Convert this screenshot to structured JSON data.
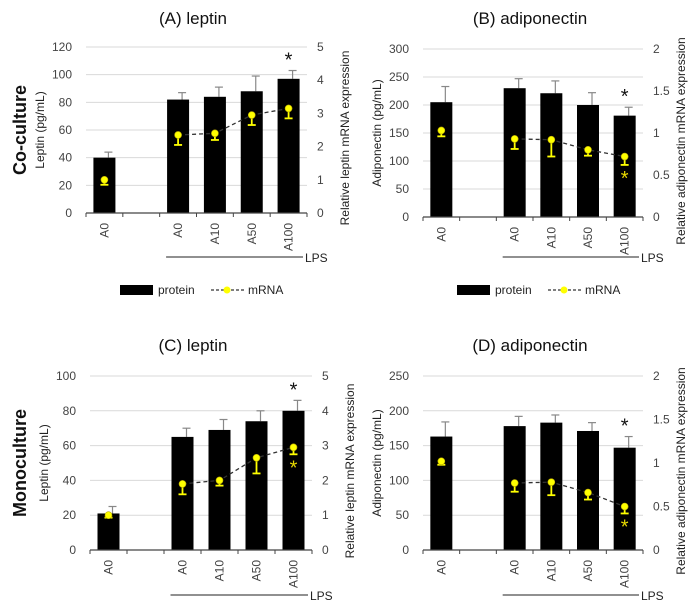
{
  "row_labels": [
    "Co-culture",
    "Monoculture"
  ],
  "legend": {
    "protein": "protein",
    "mrna": "mRNA"
  },
  "colors": {
    "bar": "#000000",
    "mrna": "#ffff00",
    "mrna_stroke": "#b8a800",
    "grid": "#d9d9d9"
  },
  "chart_data": [
    {
      "type": "bar+line",
      "title": "(A) leptin",
      "ylabel": "Leptin (pg/mL)",
      "y2label": "Relative leptin mRNA expression",
      "categories": [
        "A0",
        "",
        "A0",
        "A10",
        "A50",
        "A100"
      ],
      "group_label": "LPS",
      "ylim": [
        0,
        120
      ],
      "yticks": [
        0,
        20,
        40,
        60,
        80,
        100,
        120
      ],
      "y2lim": [
        0,
        5
      ],
      "y2ticks": [
        0,
        1,
        2,
        3,
        4,
        5
      ],
      "series": [
        {
          "name": "protein",
          "values": [
            40,
            null,
            82,
            84,
            88,
            97
          ],
          "errors": [
            4,
            null,
            5,
            7,
            11,
            6
          ],
          "significant": [
            false,
            null,
            false,
            false,
            false,
            true
          ]
        },
        {
          "name": "mRNA",
          "values": [
            1.0,
            null,
            2.35,
            2.4,
            2.95,
            3.15
          ],
          "errors": [
            0.15,
            null,
            0.3,
            0.2,
            0.3,
            0.3
          ],
          "significant": [
            false,
            null,
            false,
            false,
            false,
            false
          ]
        }
      ],
      "grid": true
    },
    {
      "type": "bar+line",
      "title": "(B) adiponectin",
      "ylabel": "Adiponectin (pg/mL)",
      "y2label": "Relative adiponectin mRNA expression",
      "categories": [
        "A0",
        "",
        "A0",
        "A10",
        "A50",
        "A100"
      ],
      "group_label": "LPS",
      "ylim": [
        0,
        300
      ],
      "yticks": [
        0,
        50,
        100,
        150,
        200,
        250,
        300
      ],
      "y2lim": [
        0,
        2
      ],
      "y2ticks": [
        0,
        0.5,
        1,
        1.5,
        2
      ],
      "series": [
        {
          "name": "protein",
          "values": [
            205,
            null,
            230,
            221,
            200,
            181
          ],
          "errors": [
            28,
            null,
            17,
            22,
            22,
            15
          ],
          "significant": [
            false,
            null,
            false,
            false,
            false,
            true
          ]
        },
        {
          "name": "mRNA",
          "values": [
            1.03,
            null,
            0.93,
            0.92,
            0.8,
            0.72
          ],
          "errors": [
            0.07,
            null,
            0.12,
            0.2,
            0.07,
            0.1
          ],
          "significant": [
            false,
            null,
            false,
            false,
            false,
            true
          ]
        }
      ],
      "grid": true
    },
    {
      "type": "bar+line",
      "title": "(C) leptin",
      "ylabel": "Leptin (pg/mL)",
      "y2label": "Relative leptin mRNA expression",
      "categories": [
        "A0",
        "",
        "A0",
        "A10",
        "A50",
        "A100"
      ],
      "group_label": "LPS",
      "ylim": [
        0,
        100
      ],
      "yticks": [
        0,
        20,
        40,
        60,
        80,
        100
      ],
      "y2lim": [
        0,
        5
      ],
      "y2ticks": [
        0,
        1,
        2,
        3,
        4,
        5
      ],
      "series": [
        {
          "name": "protein",
          "values": [
            21,
            null,
            65,
            69,
            74,
            80
          ],
          "errors": [
            4,
            null,
            5,
            6,
            6,
            6
          ],
          "significant": [
            false,
            null,
            false,
            false,
            false,
            true
          ]
        },
        {
          "name": "mRNA",
          "values": [
            1.0,
            null,
            1.9,
            2.0,
            2.65,
            2.95
          ],
          "errors": [
            0.07,
            null,
            0.3,
            0.15,
            0.45,
            0.2
          ],
          "significant": [
            false,
            null,
            false,
            false,
            false,
            true
          ]
        }
      ],
      "grid": true
    },
    {
      "type": "bar+line",
      "title": "(D) adiponectin",
      "ylabel": "Adiponectin (pg/mL)",
      "y2label": "Relative adiponectin mRNA expression",
      "categories": [
        "A0",
        "",
        "A0",
        "A10",
        "A50",
        "A100"
      ],
      "group_label": "LPS",
      "ylim": [
        0,
        250
      ],
      "yticks": [
        0,
        50,
        100,
        150,
        200,
        250
      ],
      "y2lim": [
        0,
        2
      ],
      "y2ticks": [
        0,
        0.5,
        1,
        1.5,
        2
      ],
      "series": [
        {
          "name": "protein",
          "values": [
            163,
            null,
            178,
            183,
            171,
            147
          ],
          "errors": [
            21,
            null,
            14,
            11,
            12,
            16
          ],
          "significant": [
            false,
            null,
            false,
            false,
            false,
            true
          ]
        },
        {
          "name": "mRNA",
          "values": [
            1.02,
            null,
            0.77,
            0.78,
            0.66,
            0.5
          ],
          "errors": [
            0.04,
            null,
            0.1,
            0.15,
            0.08,
            0.08
          ],
          "significant": [
            false,
            null,
            false,
            false,
            false,
            true
          ]
        }
      ],
      "grid": true
    }
  ]
}
